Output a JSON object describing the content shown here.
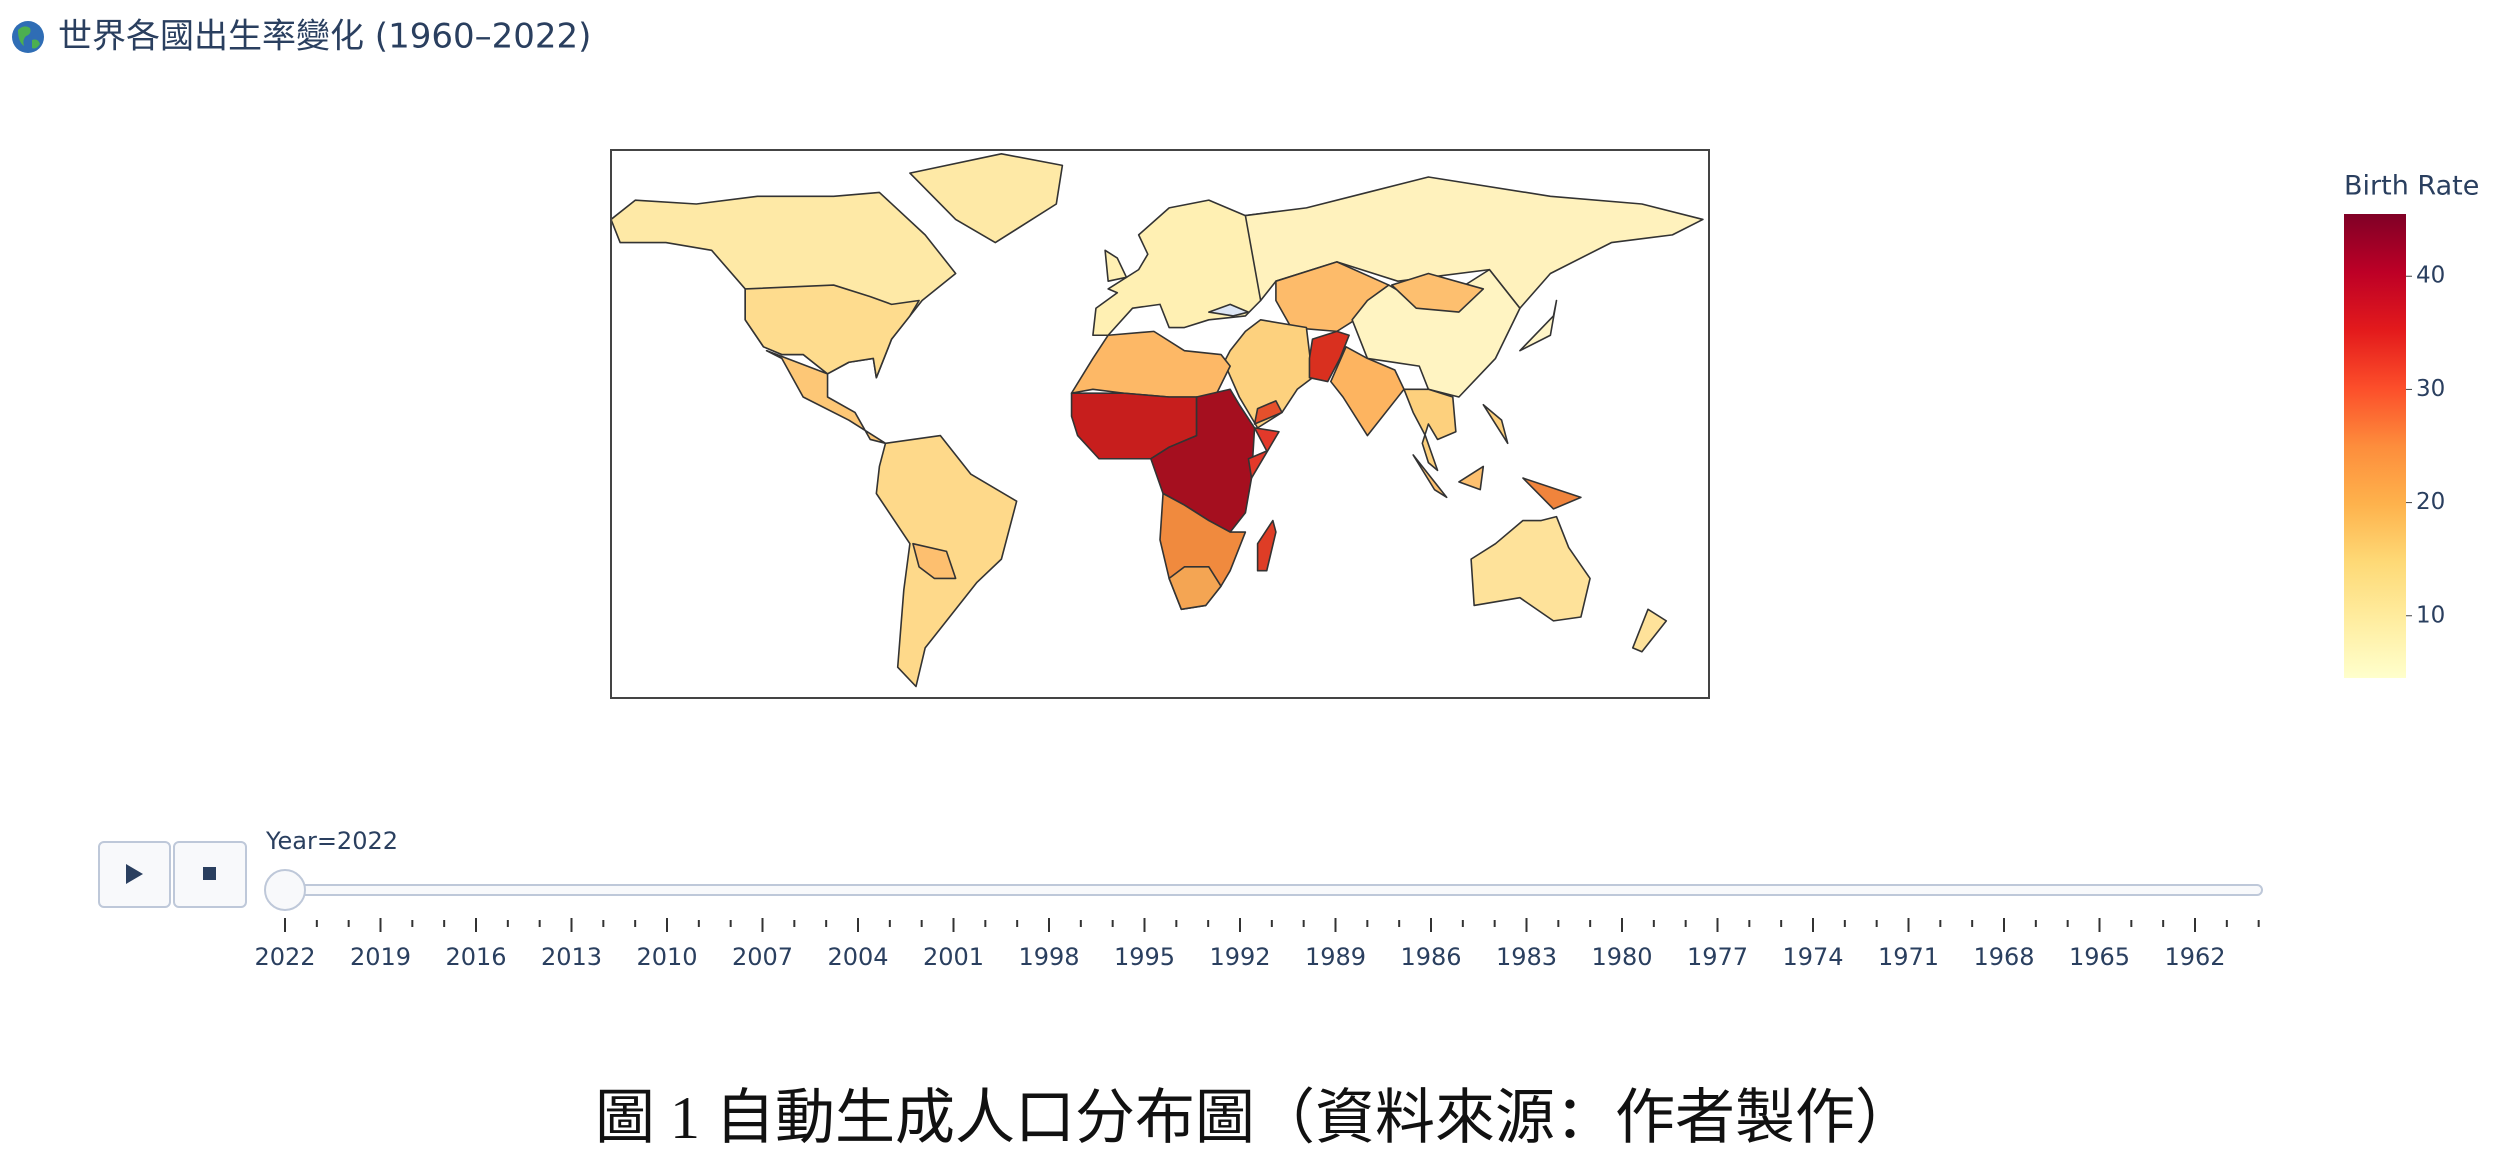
{
  "title": "世界各國出生率變化 (1960–2022)",
  "colorbar": {
    "title": "Birth Rate",
    "range": [
      4.5,
      45.5
    ],
    "ticks": [
      10,
      20,
      30,
      40
    ]
  },
  "slider": {
    "label": "Year=2022",
    "steps": [
      2022,
      2019,
      2016,
      2013,
      2010,
      2007,
      2004,
      2001,
      1998,
      1995,
      1992,
      1989,
      1986,
      1983,
      1980,
      1977,
      1974,
      1971,
      1968,
      1965,
      1962
    ]
  },
  "caption": "圖 1 自動生成人口分布圖（資料來源：作者製作）"
}
